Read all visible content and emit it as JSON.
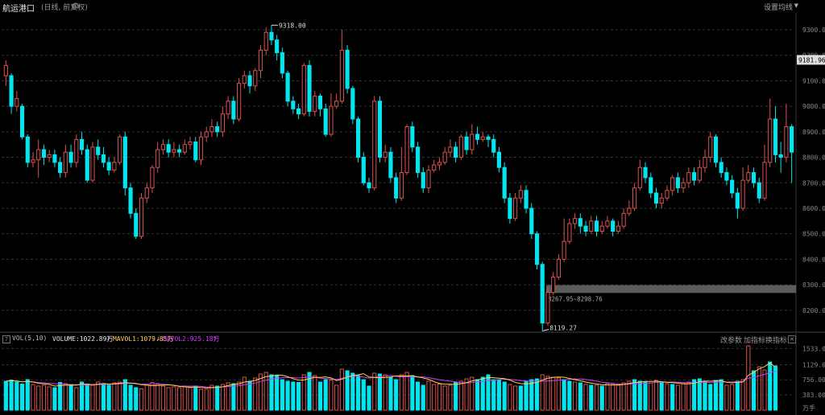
{
  "header": {
    "title": "航运港口",
    "subtitle": "(日线, 前复权)",
    "ma_settings": "设置均线"
  },
  "volume_panel": {
    "indicator": "VOL(5,10)",
    "volume_label": "VOLUME:1022.89万",
    "mavol1_label": "MAVOL1:1079.85万",
    "mavol2_label": "MAVOL2:925.18万",
    "change_params": "改参数",
    "add_indicator": "加指标",
    "switch_indicator": "换指标"
  },
  "colors": {
    "up": "#d9534f",
    "down": "#00e5ee",
    "mavol1": "#ffd24c",
    "mavol2": "#d23cff",
    "grid": "#333333",
    "highlight_band": "#7a7a7a"
  },
  "chart_data": {
    "type": "candlestick",
    "price_axis": {
      "ylim": [
        8130,
        9360
      ],
      "ticks": [
        "9300.00",
        "9200.00",
        "9100.00",
        "9000.00",
        "8900.00",
        "8800.00",
        "8700.00",
        "8600.00",
        "8500.00",
        "8400.00",
        "8300.00",
        "8200.00"
      ],
      "current_label": "9181.96"
    },
    "annotations": {
      "high_label": "9318.00",
      "low_label": "8119.27",
      "band_label": "8267.95~8298.76"
    },
    "volume_axis": {
      "ylim": [
        0,
        1600
      ],
      "ticks": [
        "1533.00",
        "1129.00",
        "756.00",
        "383.00",
        "万手"
      ]
    },
    "candles": [
      [
        9120,
        9160,
        9180,
        9080
      ],
      [
        9120,
        9000,
        9130,
        8970
      ],
      [
        9000,
        9030,
        9060,
        8980
      ],
      [
        9000,
        8880,
        9010,
        8870
      ],
      [
        8880,
        8780,
        8890,
        8760
      ],
      [
        8780,
        8790,
        8820,
        8760
      ],
      [
        8790,
        8830,
        8870,
        8720
      ],
      [
        8830,
        8800,
        8850,
        8770
      ],
      [
        8800,
        8810,
        8830,
        8780
      ],
      [
        8810,
        8780,
        8830,
        8760
      ],
      [
        8780,
        8740,
        8800,
        8720
      ],
      [
        8740,
        8820,
        8850,
        8720
      ],
      [
        8820,
        8780,
        8850,
        8760
      ],
      [
        8780,
        8870,
        8890,
        8760
      ],
      [
        8870,
        8830,
        8900,
        8810
      ],
      [
        8830,
        8710,
        8850,
        8700
      ],
      [
        8710,
        8840,
        8860,
        8700
      ],
      [
        8840,
        8810,
        8870,
        8790
      ],
      [
        8810,
        8780,
        8840,
        8760
      ],
      [
        8780,
        8750,
        8800,
        8730
      ],
      [
        8750,
        8780,
        8800,
        8740
      ],
      [
        8780,
        8880,
        8890,
        8770
      ],
      [
        8880,
        8680,
        8900,
        8650
      ],
      [
        8680,
        8580,
        8700,
        8560
      ],
      [
        8580,
        8490,
        8600,
        8480
      ],
      [
        8490,
        8640,
        8660,
        8480
      ],
      [
        8640,
        8680,
        8700,
        8620
      ],
      [
        8680,
        8760,
        8770,
        8660
      ],
      [
        8760,
        8830,
        8860,
        8740
      ],
      [
        8830,
        8850,
        8870,
        8810
      ],
      [
        8850,
        8820,
        8870,
        8800
      ],
      [
        8820,
        8830,
        8860,
        8800
      ],
      [
        8830,
        8820,
        8850,
        8800
      ],
      [
        8820,
        8850,
        8870,
        8810
      ],
      [
        8850,
        8860,
        8880,
        8830
      ],
      [
        8860,
        8790,
        8880,
        8780
      ],
      [
        8790,
        8880,
        8900,
        8770
      ],
      [
        8880,
        8900,
        8920,
        8860
      ],
      [
        8900,
        8920,
        8950,
        8880
      ],
      [
        8920,
        8900,
        8940,
        8880
      ],
      [
        8900,
        8970,
        9000,
        8880
      ],
      [
        8970,
        9020,
        9040,
        8950
      ],
      [
        9020,
        8950,
        9040,
        8930
      ],
      [
        8950,
        9090,
        9110,
        8940
      ],
      [
        9090,
        9120,
        9140,
        9070
      ],
      [
        9120,
        9080,
        9140,
        9050
      ],
      [
        9080,
        9140,
        9150,
        9060
      ],
      [
        9140,
        9220,
        9240,
        9110
      ],
      [
        9220,
        9290,
        9310,
        9200
      ],
      [
        9290,
        9260,
        9318,
        9240
      ],
      [
        9260,
        9210,
        9280,
        9180
      ],
      [
        9210,
        9130,
        9230,
        9110
      ],
      [
        9130,
        9020,
        9140,
        9000
      ],
      [
        9020,
        8990,
        9040,
        8970
      ],
      [
        8990,
        8970,
        9010,
        8950
      ],
      [
        8970,
        9160,
        9170,
        8960
      ],
      [
        9160,
        8980,
        9180,
        8960
      ],
      [
        8980,
        9040,
        9060,
        8960
      ],
      [
        9040,
        8990,
        9050,
        8960
      ],
      [
        8990,
        8890,
        9010,
        8880
      ],
      [
        8890,
        9000,
        9050,
        8880
      ],
      [
        9000,
        9020,
        9050,
        8990
      ],
      [
        9020,
        9220,
        9300,
        9010
      ],
      [
        9220,
        9070,
        9240,
        9050
      ],
      [
        9070,
        8950,
        9080,
        8930
      ],
      [
        8950,
        8800,
        8960,
        8780
      ],
      [
        8800,
        8700,
        8820,
        8690
      ],
      [
        8700,
        8680,
        8720,
        8660
      ],
      [
        8680,
        9020,
        9040,
        8670
      ],
      [
        9020,
        8800,
        9040,
        8780
      ],
      [
        8800,
        8820,
        8850,
        8780
      ],
      [
        8820,
        8720,
        8840,
        8700
      ],
      [
        8720,
        8640,
        8740,
        8620
      ],
      [
        8640,
        8740,
        8840,
        8630
      ],
      [
        8740,
        8920,
        8930,
        8730
      ],
      [
        8920,
        8840,
        8940,
        8820
      ],
      [
        8840,
        8740,
        8860,
        8720
      ],
      [
        8740,
        8680,
        8760,
        8660
      ],
      [
        8680,
        8750,
        8770,
        8660
      ],
      [
        8750,
        8770,
        8790,
        8740
      ],
      [
        8770,
        8780,
        8800,
        8750
      ],
      [
        8780,
        8820,
        8840,
        8770
      ],
      [
        8820,
        8840,
        8870,
        8800
      ],
      [
        8840,
        8800,
        8860,
        8780
      ],
      [
        8800,
        8880,
        8890,
        8790
      ],
      [
        8880,
        8830,
        8900,
        8810
      ],
      [
        8830,
        8890,
        8930,
        8810
      ],
      [
        8890,
        8870,
        8920,
        8850
      ],
      [
        8870,
        8880,
        8900,
        8860
      ],
      [
        8880,
        8870,
        8890,
        8840
      ],
      [
        8870,
        8820,
        8890,
        8800
      ],
      [
        8820,
        8760,
        8840,
        8740
      ],
      [
        8760,
        8640,
        8780,
        8620
      ],
      [
        8640,
        8560,
        8660,
        8540
      ],
      [
        8560,
        8640,
        8660,
        8550
      ],
      [
        8640,
        8670,
        8690,
        8620
      ],
      [
        8670,
        8600,
        8690,
        8580
      ],
      [
        8600,
        8500,
        8620,
        8480
      ],
      [
        8500,
        8380,
        8510,
        8360
      ],
      [
        8380,
        8150,
        8390,
        8119
      ],
      [
        8150,
        8270,
        8290,
        8140
      ],
      [
        8270,
        8330,
        8350,
        8260
      ],
      [
        8330,
        8400,
        8420,
        8320
      ],
      [
        8400,
        8470,
        8560,
        8390
      ],
      [
        8470,
        8540,
        8560,
        8460
      ],
      [
        8540,
        8560,
        8580,
        8520
      ],
      [
        8560,
        8530,
        8580,
        8500
      ],
      [
        8530,
        8510,
        8550,
        8490
      ],
      [
        8510,
        8550,
        8570,
        8500
      ],
      [
        8550,
        8510,
        8570,
        8490
      ],
      [
        8510,
        8530,
        8550,
        8500
      ],
      [
        8530,
        8550,
        8570,
        8520
      ],
      [
        8550,
        8510,
        8560,
        8490
      ],
      [
        8510,
        8530,
        8550,
        8500
      ],
      [
        8530,
        8580,
        8600,
        8520
      ],
      [
        8580,
        8600,
        8630,
        8570
      ],
      [
        8600,
        8680,
        8700,
        8590
      ],
      [
        8680,
        8760,
        8790,
        8670
      ],
      [
        8760,
        8720,
        8780,
        8700
      ],
      [
        8720,
        8660,
        8740,
        8640
      ],
      [
        8660,
        8620,
        8680,
        8600
      ],
      [
        8620,
        8640,
        8660,
        8600
      ],
      [
        8640,
        8670,
        8690,
        8630
      ],
      [
        8670,
        8720,
        8730,
        8650
      ],
      [
        8720,
        8680,
        8740,
        8660
      ],
      [
        8680,
        8700,
        8720,
        8660
      ],
      [
        8700,
        8740,
        8760,
        8680
      ],
      [
        8740,
        8710,
        8760,
        8690
      ],
      [
        8710,
        8760,
        8790,
        8700
      ],
      [
        8760,
        8800,
        8830,
        8740
      ],
      [
        8800,
        8880,
        8900,
        8780
      ],
      [
        8880,
        8780,
        8890,
        8760
      ],
      [
        8780,
        8740,
        8800,
        8720
      ],
      [
        8740,
        8710,
        8760,
        8690
      ],
      [
        8710,
        8660,
        8730,
        8640
      ],
      [
        8660,
        8600,
        8680,
        8560
      ],
      [
        8600,
        8710,
        8760,
        8590
      ],
      [
        8710,
        8740,
        8770,
        8700
      ],
      [
        8740,
        8700,
        8760,
        8680
      ],
      [
        8700,
        8640,
        8720,
        8620
      ],
      [
        8640,
        8780,
        8850,
        8630
      ],
      [
        8780,
        8950,
        9030,
        8760
      ],
      [
        8950,
        8810,
        9000,
        8780
      ],
      [
        8810,
        8800,
        8860,
        8740
      ],
      [
        8800,
        8920,
        9010,
        8780
      ],
      [
        8920,
        8820,
        8930,
        8700
      ]
    ],
    "volume": [
      [
        720,
        1
      ],
      [
        750,
        1
      ],
      [
        700,
        1
      ],
      [
        650,
        1
      ],
      [
        760,
        1
      ],
      [
        640,
        0
      ],
      [
        600,
        0
      ],
      [
        620,
        0
      ],
      [
        580,
        0
      ],
      [
        560,
        1
      ],
      [
        690,
        1
      ],
      [
        660,
        0
      ],
      [
        640,
        1
      ],
      [
        560,
        0
      ],
      [
        700,
        1
      ],
      [
        650,
        1
      ],
      [
        620,
        0
      ],
      [
        700,
        0
      ],
      [
        650,
        1
      ],
      [
        620,
        1
      ],
      [
        680,
        0
      ],
      [
        700,
        0
      ],
      [
        760,
        1
      ],
      [
        620,
        1
      ],
      [
        560,
        1
      ],
      [
        530,
        0
      ],
      [
        640,
        0
      ],
      [
        690,
        0
      ],
      [
        660,
        0
      ],
      [
        600,
        0
      ],
      [
        560,
        0
      ],
      [
        580,
        0
      ],
      [
        560,
        0
      ],
      [
        600,
        0
      ],
      [
        560,
        0
      ],
      [
        580,
        1
      ],
      [
        520,
        0
      ],
      [
        520,
        0
      ],
      [
        620,
        0
      ],
      [
        600,
        1
      ],
      [
        640,
        0
      ],
      [
        680,
        0
      ],
      [
        660,
        1
      ],
      [
        700,
        0
      ],
      [
        820,
        0
      ],
      [
        720,
        1
      ],
      [
        800,
        0
      ],
      [
        900,
        0
      ],
      [
        940,
        0
      ],
      [
        880,
        1
      ],
      [
        860,
        1
      ],
      [
        760,
        1
      ],
      [
        720,
        1
      ],
      [
        700,
        1
      ],
      [
        690,
        1
      ],
      [
        880,
        0
      ],
      [
        940,
        1
      ],
      [
        860,
        0
      ],
      [
        700,
        1
      ],
      [
        760,
        1
      ],
      [
        750,
        0
      ],
      [
        620,
        0
      ],
      [
        1020,
        0
      ],
      [
        980,
        1
      ],
      [
        920,
        1
      ],
      [
        860,
        1
      ],
      [
        760,
        1
      ],
      [
        600,
        1
      ],
      [
        920,
        0
      ],
      [
        900,
        1
      ],
      [
        880,
        0
      ],
      [
        820,
        1
      ],
      [
        760,
        1
      ],
      [
        880,
        0
      ],
      [
        940,
        0
      ],
      [
        860,
        1
      ],
      [
        700,
        1
      ],
      [
        620,
        1
      ],
      [
        720,
        0
      ],
      [
        640,
        0
      ],
      [
        650,
        0
      ],
      [
        600,
        0
      ],
      [
        620,
        0
      ],
      [
        700,
        1
      ],
      [
        720,
        0
      ],
      [
        780,
        0
      ],
      [
        820,
        0
      ],
      [
        760,
        1
      ],
      [
        820,
        1
      ],
      [
        880,
        1
      ],
      [
        760,
        1
      ],
      [
        760,
        1
      ],
      [
        700,
        1
      ],
      [
        640,
        0
      ],
      [
        600,
        0
      ],
      [
        600,
        1
      ],
      [
        720,
        1
      ],
      [
        760,
        1
      ],
      [
        780,
        1
      ],
      [
        880,
        0
      ],
      [
        840,
        0
      ],
      [
        820,
        0
      ],
      [
        800,
        0
      ],
      [
        760,
        1
      ],
      [
        720,
        1
      ],
      [
        700,
        0
      ],
      [
        680,
        1
      ],
      [
        640,
        0
      ],
      [
        620,
        1
      ],
      [
        620,
        0
      ],
      [
        600,
        1
      ],
      [
        660,
        0
      ],
      [
        640,
        0
      ],
      [
        620,
        0
      ],
      [
        680,
        0
      ],
      [
        720,
        0
      ],
      [
        760,
        1
      ],
      [
        720,
        1
      ],
      [
        700,
        1
      ],
      [
        680,
        0
      ],
      [
        740,
        0
      ],
      [
        700,
        1
      ],
      [
        660,
        0
      ],
      [
        640,
        1
      ],
      [
        620,
        0
      ],
      [
        660,
        0
      ],
      [
        700,
        0
      ],
      [
        760,
        1
      ],
      [
        780,
        1
      ],
      [
        720,
        1
      ],
      [
        640,
        1
      ],
      [
        740,
        1
      ],
      [
        760,
        1
      ],
      [
        620,
        0
      ],
      [
        640,
        0
      ],
      [
        720,
        1
      ],
      [
        760,
        0
      ],
      [
        1600,
        0
      ],
      [
        980,
        1
      ],
      [
        1080,
        0
      ],
      [
        1000,
        0
      ],
      [
        1200,
        1
      ],
      [
        1100,
        1
      ]
    ]
  }
}
